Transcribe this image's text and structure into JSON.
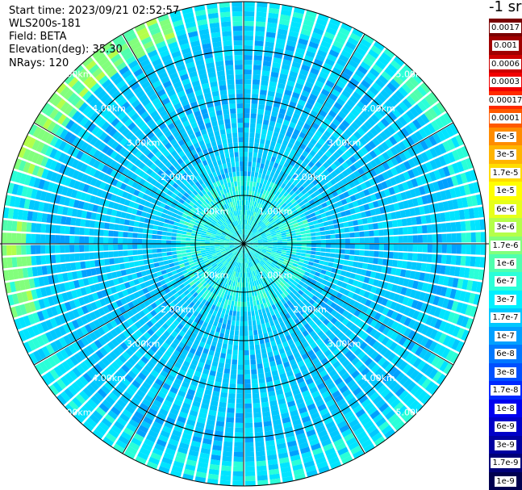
{
  "header": {
    "start_time": "Start time: 2023/09/21 02:52:57",
    "instrument": "WLS200s-181",
    "field": "Field: BETA",
    "elevation": "Elevation(deg): 35.30",
    "nrays": "NRays: 120"
  },
  "colorbar": {
    "unit": "-1 sr",
    "labels": [
      "0.0017",
      "0.001",
      "0.0006",
      "0.0003",
      "0.00017",
      "0.0001",
      "6e-5",
      "3e-5",
      "1.7e-5",
      "1e-5",
      "6e-6",
      "3e-6",
      "1.7e-6",
      "1e-6",
      "6e-7",
      "3e-7",
      "1.7e-7",
      "1e-7",
      "6e-8",
      "3e-8",
      "1.7e-8",
      "1e-8",
      "6e-9",
      "3e-9",
      "1.7e-9",
      "1e-9"
    ],
    "colors": [
      "#7a0000",
      "#a00000",
      "#cc0000",
      "#f20000",
      "#ff2a00",
      "#ff5a00",
      "#ff8c00",
      "#ffb400",
      "#ffdc00",
      "#ffff00",
      "#e6ff1a",
      "#b4ff4a",
      "#82ff7c",
      "#50ffae",
      "#2affd8",
      "#00f0ff",
      "#00c8ff",
      "#00a0ff",
      "#0078ff",
      "#0050ff",
      "#0028ff",
      "#0000f0",
      "#0000c8",
      "#0000a0",
      "#000078",
      "#000050"
    ]
  },
  "chart_data": {
    "type": "heatmap",
    "projection": "polar-ppi",
    "field": "BETA",
    "nrays": 120,
    "max_range_km": 5.0,
    "range_rings_km": [
      1.0,
      2.0,
      3.0,
      4.0,
      5.0
    ],
    "ring_labels": [
      "1.00km",
      "2.00km",
      "3.00km",
      "4.00km",
      "5.00km"
    ],
    "spokes_deg": [
      0,
      30,
      60,
      90,
      120,
      150,
      180,
      210,
      240,
      270,
      300,
      330
    ],
    "palette_dominant": [
      "#00a0ff",
      "#00c8ff",
      "#0078ff",
      "#2affd8",
      "#82ff7c",
      "#b4ff4a"
    ]
  }
}
